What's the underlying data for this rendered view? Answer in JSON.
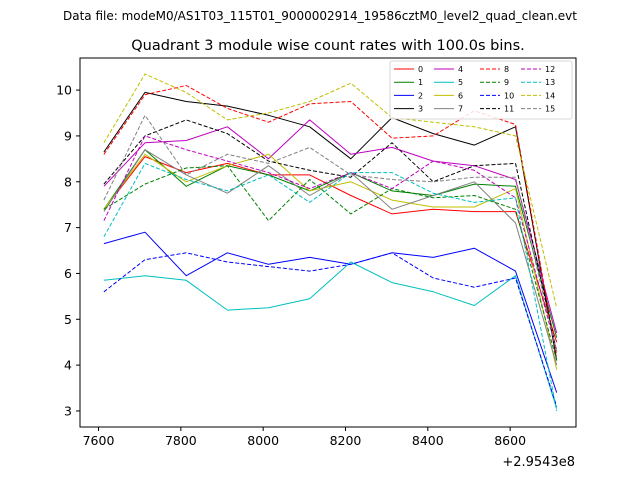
{
  "chart_data": {
    "type": "line",
    "suptitle": "Data file: modeM0/AS1T03_115T01_9000002914_19586cztM0_level2_quad_clean.evt",
    "title": "Quadrant 3 module wise count rates with 100.0s bins.",
    "xlabel": "",
    "ylabel": "",
    "x_offset_label": "+2.9543e8",
    "xlim": [
      7555,
      8760
    ],
    "ylim": [
      2.65,
      10.7
    ],
    "xticks": [
      7600,
      7800,
      8000,
      8200,
      8400,
      8600
    ],
    "yticks": [
      3,
      4,
      5,
      6,
      7,
      8,
      9,
      10
    ],
    "x": [
      7613,
      7713,
      7813,
      7913,
      8013,
      8113,
      8213,
      8313,
      8413,
      8513,
      8613,
      8713
    ],
    "series": [
      {
        "name": "0",
        "color": "#ff0000",
        "dash": "solid",
        "values": [
          7.4,
          8.55,
          8.2,
          8.4,
          8.15,
          8.15,
          7.7,
          7.3,
          7.4,
          7.35,
          7.35,
          4.5
        ]
      },
      {
        "name": "1",
        "color": "#008000",
        "dash": "solid",
        "values": [
          7.4,
          8.7,
          7.9,
          8.35,
          8.15,
          7.8,
          8.2,
          7.8,
          7.7,
          7.95,
          7.9,
          4.6
        ]
      },
      {
        "name": "2",
        "color": "#0000ff",
        "dash": "solid",
        "values": [
          6.65,
          6.9,
          5.95,
          6.45,
          6.2,
          6.35,
          6.2,
          6.45,
          6.35,
          6.55,
          6.05,
          3.4
        ]
      },
      {
        "name": "3",
        "color": "#000000",
        "dash": "solid",
        "values": [
          8.65,
          9.95,
          9.75,
          9.65,
          9.45,
          9.2,
          8.5,
          9.4,
          9.05,
          8.8,
          9.2,
          4.1
        ]
      },
      {
        "name": "4",
        "color": "#bf00bf",
        "dash": "solid",
        "values": [
          7.9,
          8.85,
          8.9,
          9.2,
          8.5,
          9.35,
          8.6,
          8.75,
          8.45,
          8.35,
          8.05,
          4.7
        ]
      },
      {
        "name": "5",
        "color": "#00bfbf",
        "dash": "solid",
        "values": [
          5.85,
          5.95,
          5.85,
          5.2,
          5.25,
          5.45,
          6.25,
          5.8,
          5.6,
          5.3,
          5.95,
          3.05
        ]
      },
      {
        "name": "6",
        "color": "#bfbf00",
        "dash": "solid",
        "values": [
          7.4,
          8.6,
          8.0,
          8.35,
          8.6,
          7.8,
          8.0,
          7.6,
          7.45,
          7.45,
          7.85,
          3.9
        ]
      },
      {
        "name": "7",
        "color": "#808080",
        "dash": "solid",
        "values": [
          7.35,
          8.7,
          8.15,
          7.75,
          8.35,
          7.7,
          8.2,
          7.4,
          7.7,
          8.0,
          7.1,
          4.0
        ]
      },
      {
        "name": "8",
        "color": "#ff0000",
        "dash": "dashed",
        "values": [
          8.6,
          9.9,
          10.1,
          9.6,
          9.3,
          9.7,
          9.75,
          8.95,
          9.0,
          9.55,
          9.25,
          4.2
        ]
      },
      {
        "name": "9",
        "color": "#008000",
        "dash": "dashed",
        "values": [
          7.4,
          7.95,
          8.3,
          8.35,
          7.15,
          8.05,
          7.3,
          7.85,
          7.65,
          7.7,
          7.4,
          4.1
        ]
      },
      {
        "name": "10",
        "color": "#0000ff",
        "dash": "dashed",
        "values": [
          5.6,
          6.3,
          6.45,
          6.25,
          6.15,
          6.05,
          6.2,
          6.45,
          5.9,
          5.7,
          5.9,
          3.1
        ]
      },
      {
        "name": "11",
        "color": "#000000",
        "dash": "dashed",
        "values": [
          7.95,
          9.0,
          9.35,
          9.05,
          8.45,
          8.25,
          8.1,
          8.85,
          8.0,
          8.35,
          8.4,
          4.3
        ]
      },
      {
        "name": "12",
        "color": "#bf00bf",
        "dash": "dashed",
        "values": [
          7.15,
          9.0,
          8.7,
          8.45,
          8.2,
          7.85,
          8.2,
          7.85,
          8.45,
          8.25,
          7.65,
          4.3
        ]
      },
      {
        "name": "13",
        "color": "#00bfbf",
        "dash": "dashed",
        "values": [
          6.8,
          8.4,
          8.05,
          7.8,
          8.15,
          7.55,
          8.2,
          8.2,
          7.75,
          7.55,
          7.65,
          3.0
        ]
      },
      {
        "name": "14",
        "color": "#bfbf00",
        "dash": "dashed",
        "values": [
          8.85,
          10.35,
          9.95,
          9.35,
          9.5,
          9.75,
          10.15,
          9.4,
          9.3,
          9.2,
          9.0,
          5.25
        ]
      },
      {
        "name": "15",
        "color": "#808080",
        "dash": "dashed",
        "values": [
          7.6,
          9.45,
          8.15,
          8.6,
          8.4,
          8.75,
          8.15,
          8.05,
          8.0,
          8.1,
          8.1,
          4.3
        ]
      }
    ],
    "legend": {
      "location": "upper right",
      "columns": 4
    },
    "grid": false
  }
}
